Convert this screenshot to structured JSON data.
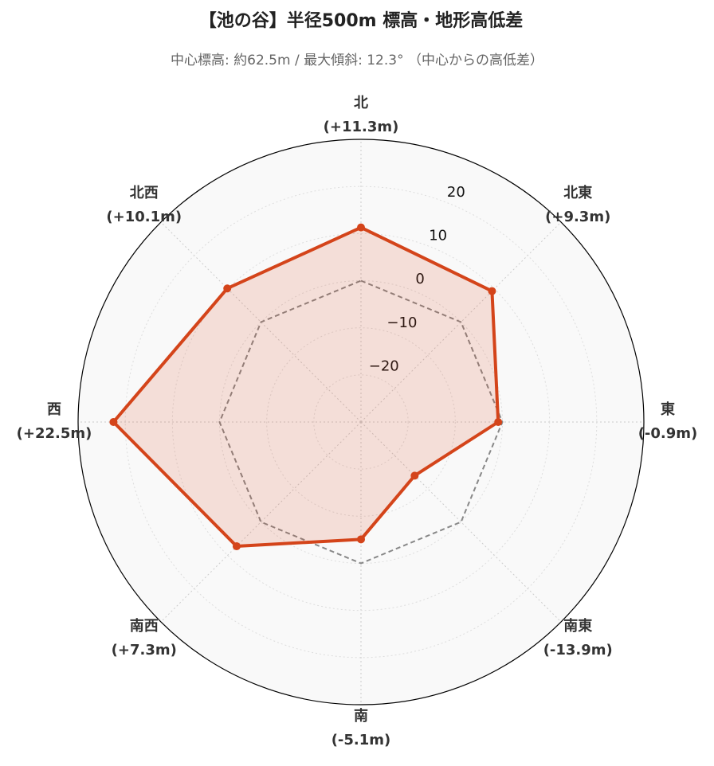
{
  "chart_data": {
    "type": "radar",
    "title": "【池の谷】半径500m 標高・地形高低差",
    "subtitle": "中心標高: 約62.5m / 最大傾斜: 12.3° （中心からの高低差）",
    "categories": [
      "北",
      "北東",
      "東",
      "南東",
      "南",
      "南西",
      "西",
      "北西"
    ],
    "values": [
      11.3,
      9.3,
      -0.9,
      -13.9,
      -5.1,
      7.3,
      22.5,
      10.1
    ],
    "value_labels": [
      "(+11.3m)",
      "(+9.3m)",
      "(-0.9m)",
      "(-13.9m)",
      "(-5.1m)",
      "(+7.3m)",
      "(+22.5m)",
      "(+10.1m)"
    ],
    "color": "#d4441a",
    "ylim": [
      -30,
      30
    ],
    "yticks": [
      {
        "value": -20,
        "label": "−20"
      },
      {
        "value": -10,
        "label": "−10"
      },
      0,
      10,
      20
    ],
    "baseline": 0,
    "grid": true
  }
}
